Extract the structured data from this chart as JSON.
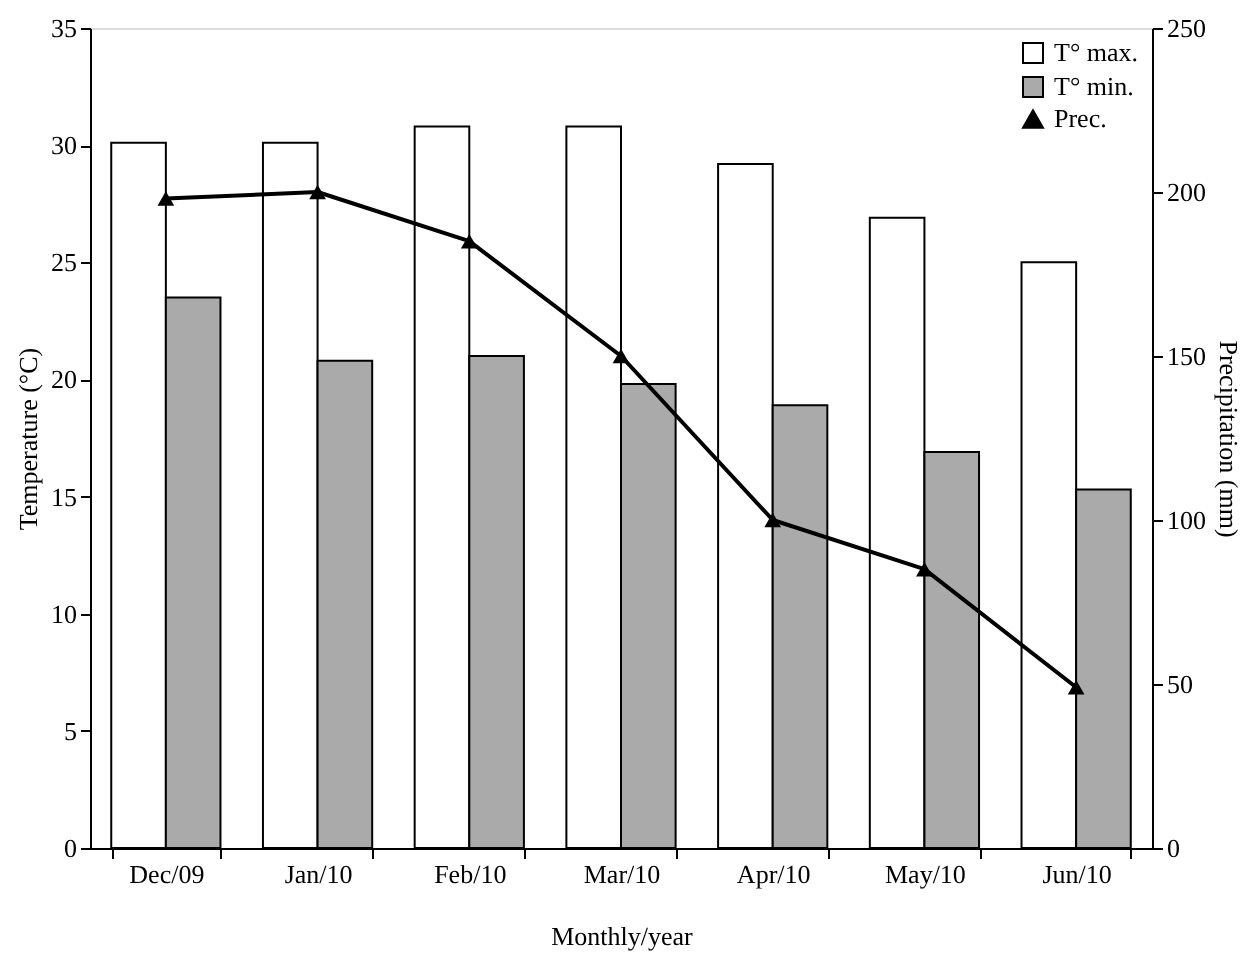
{
  "chart_data": {
    "type": "bar",
    "xlabel": "Monthly/year",
    "ylabel": "Temperature (°C)",
    "y2label": "Precipitation (mm)",
    "categories": [
      "Dec/09",
      "Jan/10",
      "Feb/10",
      "Mar/10",
      "Apr/10",
      "May/10",
      "Jun/10"
    ],
    "series": [
      {
        "name": "T° max.",
        "color": "#ffffff",
        "values": [
          30.1,
          30.1,
          30.8,
          30.8,
          29.2,
          26.9,
          25.0
        ]
      },
      {
        "name": "T° min.",
        "color": "#aaaaaa",
        "values": [
          23.5,
          20.8,
          21.0,
          19.8,
          18.9,
          16.9,
          15.3
        ]
      },
      {
        "name": "Prec.",
        "type": "line",
        "axis": "y2",
        "color": "#000000",
        "marker": "triangle",
        "values": [
          198,
          200,
          185,
          150,
          100,
          85,
          49
        ]
      }
    ],
    "ylim": [
      0,
      35
    ],
    "yticks": [
      0,
      5,
      10,
      15,
      20,
      25,
      30,
      35
    ],
    "y2lim": [
      0,
      250
    ],
    "y2ticks": [
      0,
      50,
      100,
      150,
      200,
      250
    ],
    "legend": "top right",
    "grid": false
  }
}
